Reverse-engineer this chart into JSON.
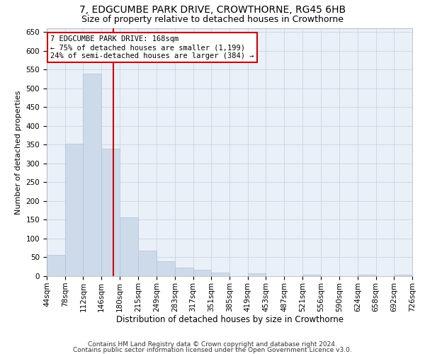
{
  "title1": "7, EDGCUMBE PARK DRIVE, CROWTHORNE, RG45 6HB",
  "title2": "Size of property relative to detached houses in Crowthorne",
  "xlabel": "Distribution of detached houses by size in Crowthorne",
  "ylabel": "Number of detached properties",
  "bar_color": "#ccdaea",
  "bar_edge_color": "#b0c4d8",
  "grid_color": "#c5d5e5",
  "background_color": "#eaf0f7",
  "vline_color": "#cc0000",
  "vline_x": 168,
  "annotation_text": "7 EDGCUMBE PARK DRIVE: 168sqm\n← 75% of detached houses are smaller (1,199)\n24% of semi-detached houses are larger (384) →",
  "annotation_box_color": "#ffffff",
  "annotation_box_edge": "#cc0000",
  "footer1": "Contains HM Land Registry data © Crown copyright and database right 2024.",
  "footer2": "Contains public sector information licensed under the Open Government Licence v3.0.",
  "bin_edges": [
    44,
    78,
    112,
    146,
    180,
    215,
    249,
    283,
    317,
    351,
    385,
    419,
    453,
    487,
    521,
    556,
    590,
    624,
    658,
    692,
    726
  ],
  "bin_heights": [
    57,
    352,
    540,
    340,
    157,
    67,
    40,
    22,
    17,
    9,
    0,
    7,
    0,
    0,
    4,
    0,
    0,
    4,
    0,
    4
  ],
  "ylim": [
    0,
    660
  ],
  "xlim": [
    44,
    726
  ],
  "title1_fontsize": 10,
  "title2_fontsize": 9,
  "xlabel_fontsize": 8.5,
  "ylabel_fontsize": 8,
  "tick_fontsize": 7.5,
  "footer_fontsize": 6.5,
  "annotation_fontsize": 7.5
}
